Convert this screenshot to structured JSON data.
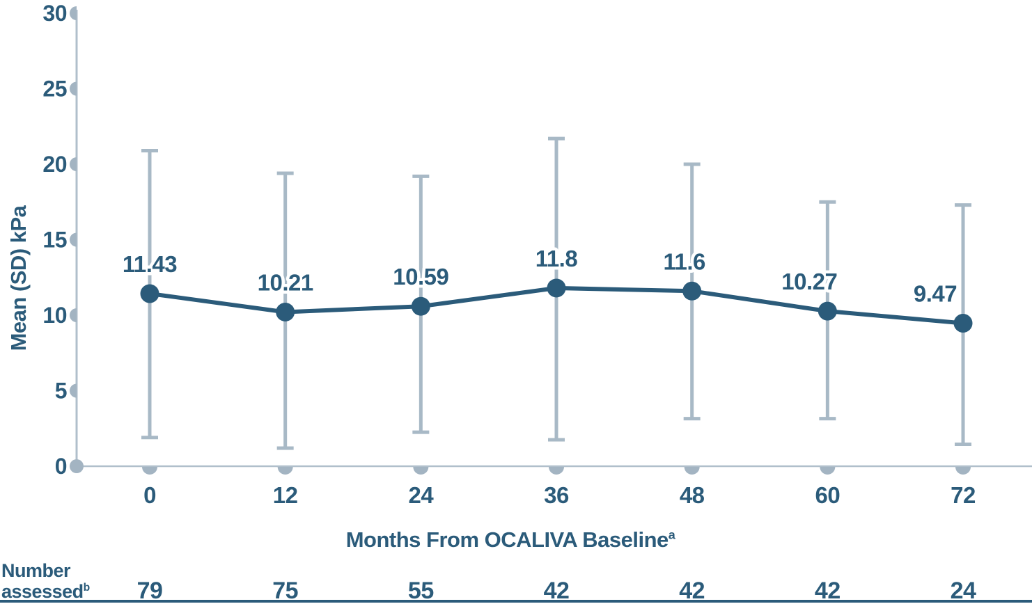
{
  "colors": {
    "dark_blue": "#2b5b7a",
    "error_bar_gray": "#a8b9c6",
    "axis_line_gray": "#b0bfcb",
    "tick_gray": "#a3b4c2",
    "background": "#ffffff"
  },
  "y_axis": {
    "title": "Mean (SD) kPa",
    "ticks": [
      0,
      5,
      10,
      15,
      20,
      25,
      30
    ]
  },
  "x_axis": {
    "title": "Months From OCALIVA Baseline",
    "title_sup": "a",
    "ticks": [
      0,
      12,
      24,
      36,
      48,
      60,
      72
    ]
  },
  "footer": {
    "label": "Number assessed",
    "label_sup": "b",
    "values": [
      "79",
      "75",
      "55",
      "42",
      "42",
      "42",
      "24"
    ]
  },
  "chart_data": {
    "type": "line",
    "title": "",
    "xlabel": "Months From OCALIVA Baseline",
    "ylabel": "Mean (SD) kPa",
    "x": [
      0,
      12,
      24,
      36,
      48,
      60,
      72
    ],
    "ylim": [
      0,
      30
    ],
    "grid": false,
    "legend": "none",
    "series": [
      {
        "name": "Mean (SD) kPa",
        "values": [
          11.43,
          10.21,
          10.59,
          11.8,
          11.6,
          10.27,
          9.47
        ],
        "error_upper": [
          20.9,
          19.4,
          19.2,
          21.7,
          20.0,
          17.5,
          17.3
        ],
        "error_lower": [
          1.9,
          1.2,
          2.25,
          1.75,
          3.15,
          3.15,
          1.45
        ]
      }
    ],
    "point_labels": [
      "11.43",
      "10.21",
      "10.59",
      "11.8",
      "11.6",
      "10.27",
      "9.47"
    ],
    "point_label_dx": [
      0,
      0,
      0,
      0,
      -11,
      -26,
      -40
    ],
    "number_assessed": [
      "79",
      "75",
      "55",
      "42",
      "42",
      "42",
      "24"
    ]
  }
}
